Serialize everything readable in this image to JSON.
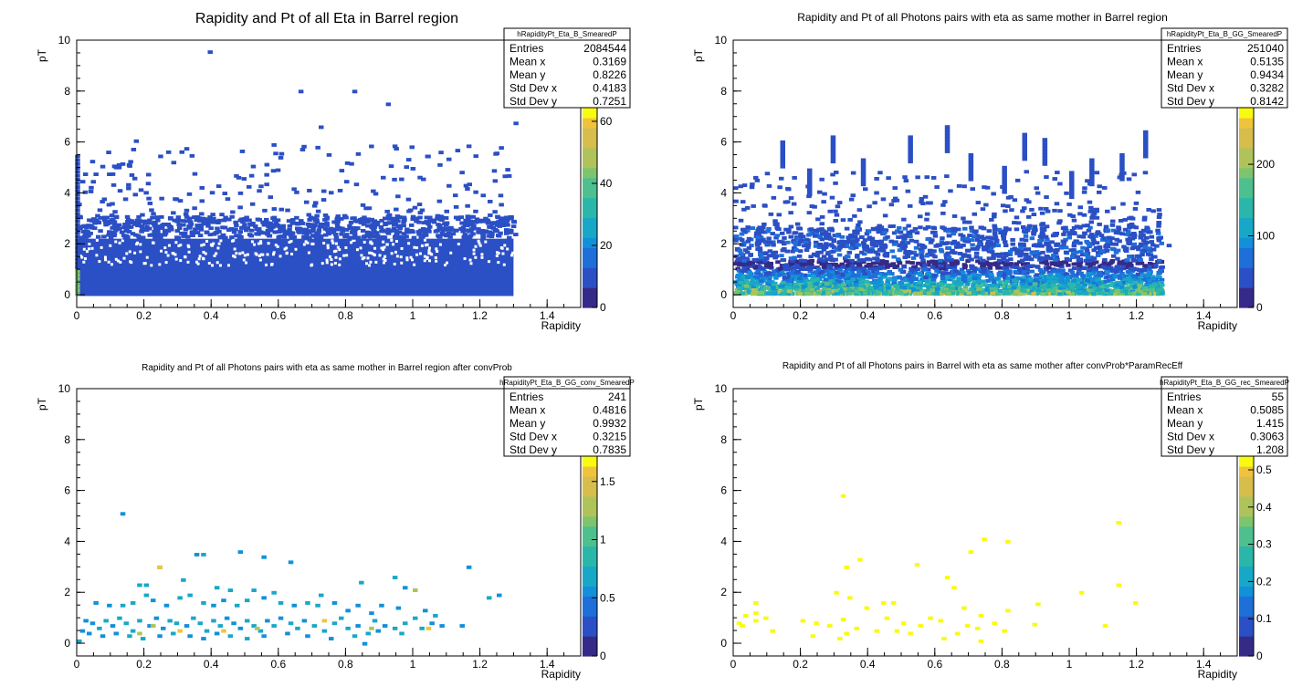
{
  "colors": {
    "palette": [
      "#352a87",
      "#2b4fc4",
      "#1e6fd9",
      "#1290d9",
      "#18a8c7",
      "#2ab7a9",
      "#4dc08e",
      "#7ec46d",
      "#b0c35a",
      "#d6bd4c",
      "#f0c43a",
      "#f9fb0e"
    ]
  },
  "chart_data": [
    {
      "type": "heatmap",
      "title": "Rapidity and Pt of all Eta in Barrel region",
      "xlabel": "Rapidity",
      "ylabel": "pT",
      "xlim": [
        0,
        1.5
      ],
      "ylim": [
        -0.5,
        10
      ],
      "x_ticks": [
        "0",
        "0.2",
        "0.4",
        "0.6",
        "0.8",
        "1",
        "1.2",
        "1.4"
      ],
      "y_ticks": [
        "0",
        "2",
        "4",
        "6",
        "8",
        "10"
      ],
      "z_ticks": [
        "0",
        "20",
        "40",
        "60",
        "80"
      ],
      "zmax": 90,
      "stats": {
        "name": "hRapidityPt_Eta_B_SmearedP",
        "rows": [
          {
            "label": "Entries",
            "value": "2084544"
          },
          {
            "label": "Mean x",
            "value": "0.3169"
          },
          {
            "label": "Mean y",
            "value": "0.8226"
          },
          {
            "label": "Std Dev x",
            "value": "0.4183"
          },
          {
            "label": "Std Dev y",
            "value": "0.7251"
          }
        ]
      },
      "x_range_filled": [
        0,
        1.3
      ],
      "dense_band_pt": 2.2,
      "sparse_band_pt": 3.0,
      "isolated_points": [
        [
          0.39,
          9.5
        ],
        [
          0.66,
          7.95
        ],
        [
          0.82,
          7.95
        ],
        [
          0.92,
          7.45
        ],
        [
          0.72,
          6.55
        ],
        [
          1.3,
          6.7
        ],
        [
          0.17,
          6.0
        ],
        [
          0.32,
          5.7
        ],
        [
          0.58,
          5.85
        ],
        [
          0.94,
          5.8
        ],
        [
          1.16,
          5.8
        ],
        [
          1.24,
          5.5
        ],
        [
          0.04,
          5.2
        ],
        [
          0.05,
          4.7
        ],
        [
          0.09,
          4.7
        ],
        [
          0.6,
          5.35
        ],
        [
          0.07,
          5.0
        ],
        [
          0.13,
          5.1
        ]
      ]
    },
    {
      "type": "heatmap",
      "title": "Rapidity and Pt of all Photons pairs with eta as same mother in Barrel region",
      "xlabel": "Rapidity",
      "ylabel": "pT",
      "xlim": [
        0,
        1.5
      ],
      "ylim": [
        -0.5,
        10
      ],
      "x_ticks": [
        "0",
        "0.2",
        "0.4",
        "0.6",
        "0.8",
        "1",
        "1.2",
        "1.4"
      ],
      "y_ticks": [
        "0",
        "2",
        "4",
        "6",
        "8",
        "10"
      ],
      "z_ticks": [
        "0",
        "100",
        "200",
        "300"
      ],
      "zmax": 390,
      "stats": {
        "name": "hRapidityPt_Eta_B_GG_SmearedP",
        "rows": [
          {
            "label": "Entries",
            "value": "251040"
          },
          {
            "label": "Mean x",
            "value": "0.5135"
          },
          {
            "label": "Mean y",
            "value": "0.9434"
          },
          {
            "label": "Std Dev x",
            "value": "0.3282"
          },
          {
            "label": "Std Dev y",
            "value": "0.8142"
          }
        ]
      },
      "x_range_filled": [
        0,
        1.27
      ],
      "dense_band_pt": 1.3,
      "sparse_band_pt": 2.6,
      "spikes": [
        [
          0.63,
          6.6
        ],
        [
          0.52,
          6.2
        ],
        [
          0.86,
          6.3
        ],
        [
          0.92,
          6.1
        ],
        [
          1.22,
          6.4
        ],
        [
          0.29,
          6.2
        ],
        [
          0.14,
          6.0
        ],
        [
          0.38,
          5.3
        ],
        [
          0.7,
          5.5
        ],
        [
          1.15,
          5.5
        ],
        [
          0.22,
          4.9
        ],
        [
          1.06,
          5.3
        ],
        [
          0.8,
          5.0
        ],
        [
          1.0,
          4.8
        ]
      ]
    },
    {
      "type": "heatmap",
      "title": "Rapidity and Pt of all Photons pairs with eta as same mother in Barrel region after convProb",
      "xlabel": "Rapidity",
      "ylabel": "pT",
      "xlim": [
        0,
        1.5
      ],
      "ylim": [
        -0.5,
        10
      ],
      "x_ticks": [
        "0",
        "0.2",
        "0.4",
        "0.6",
        "0.8",
        "1",
        "1.2",
        "1.4"
      ],
      "y_ticks": [
        "0",
        "2",
        "4",
        "6",
        "8",
        "10"
      ],
      "z_ticks": [
        "0",
        "0.5",
        "1",
        "1.5",
        "2"
      ],
      "zmax": 2.4,
      "stats": {
        "name": "hRapidityPt_Eta_B_GG_conv_SmearedP",
        "rows": [
          {
            "label": "Entries",
            "value": "241"
          },
          {
            "label": "Mean x",
            "value": "0.4816"
          },
          {
            "label": "Mean y",
            "value": "0.9932"
          },
          {
            "label": "Std Dev x",
            "value": "0.3215"
          },
          {
            "label": "Std Dev y",
            "value": "0.7835"
          }
        ]
      },
      "points": [
        [
          0.13,
          5.05
        ],
        [
          0.24,
          2.95
        ],
        [
          0.35,
          3.45
        ],
        [
          0.37,
          3.45
        ],
        [
          0.48,
          3.55
        ],
        [
          0.55,
          3.35
        ],
        [
          0.63,
          3.15
        ],
        [
          1.16,
          2.95
        ],
        [
          0.18,
          2.25
        ],
        [
          0.2,
          2.25
        ],
        [
          0.31,
          2.45
        ],
        [
          0.41,
          2.15
        ],
        [
          0.45,
          2.05
        ],
        [
          0.52,
          2.05
        ],
        [
          0.58,
          1.95
        ],
        [
          0.72,
          1.85
        ],
        [
          0.84,
          2.35
        ],
        [
          0.94,
          2.55
        ],
        [
          0.97,
          2.15
        ],
        [
          1.0,
          2.05
        ],
        [
          1.22,
          1.75
        ],
        [
          1.25,
          1.85
        ],
        [
          0.05,
          1.55
        ],
        [
          0.09,
          1.45
        ],
        [
          0.13,
          1.45
        ],
        [
          0.16,
          1.55
        ],
        [
          0.2,
          1.85
        ],
        [
          0.22,
          1.65
        ],
        [
          0.26,
          1.45
        ],
        [
          0.3,
          1.75
        ],
        [
          0.33,
          1.85
        ],
        [
          0.37,
          1.55
        ],
        [
          0.4,
          1.45
        ],
        [
          0.43,
          1.65
        ],
        [
          0.47,
          1.45
        ],
        [
          0.5,
          1.65
        ],
        [
          0.55,
          1.75
        ],
        [
          0.6,
          1.55
        ],
        [
          0.64,
          1.45
        ],
        [
          0.68,
          1.55
        ],
        [
          0.71,
          1.45
        ],
        [
          0.76,
          1.55
        ],
        [
          0.8,
          1.25
        ],
        [
          0.83,
          1.45
        ],
        [
          0.87,
          1.15
        ],
        [
          0.9,
          1.45
        ],
        [
          0.95,
          1.35
        ],
        [
          1.03,
          1.25
        ],
        [
          1.06,
          1.05
        ],
        [
          0.02,
          0.85
        ],
        [
          0.04,
          0.75
        ],
        [
          0.06,
          0.55
        ],
        [
          0.08,
          0.85
        ],
        [
          0.1,
          0.65
        ],
        [
          0.12,
          0.95
        ],
        [
          0.14,
          0.75
        ],
        [
          0.16,
          0.45
        ],
        [
          0.18,
          0.85
        ],
        [
          0.21,
          0.65
        ],
        [
          0.23,
          0.95
        ],
        [
          0.25,
          0.55
        ],
        [
          0.27,
          0.85
        ],
        [
          0.29,
          0.75
        ],
        [
          0.32,
          0.65
        ],
        [
          0.34,
          0.95
        ],
        [
          0.36,
          0.75
        ],
        [
          0.38,
          0.45
        ],
        [
          0.4,
          0.85
        ],
        [
          0.42,
          0.65
        ],
        [
          0.44,
          0.95
        ],
        [
          0.46,
          0.75
        ],
        [
          0.48,
          0.55
        ],
        [
          0.5,
          0.85
        ],
        [
          0.52,
          0.65
        ],
        [
          0.54,
          0.45
        ],
        [
          0.56,
          0.85
        ],
        [
          0.58,
          0.65
        ],
        [
          0.6,
          0.95
        ],
        [
          0.63,
          0.75
        ],
        [
          0.65,
          0.55
        ],
        [
          0.67,
          0.85
        ],
        [
          0.7,
          0.65
        ],
        [
          0.73,
          0.45
        ],
        [
          0.76,
          0.75
        ],
        [
          0.78,
          0.95
        ],
        [
          0.8,
          0.55
        ],
        [
          0.83,
          0.65
        ],
        [
          0.86,
          0.35
        ],
        [
          0.88,
          0.85
        ],
        [
          0.91,
          0.65
        ],
        [
          0.94,
          0.55
        ],
        [
          0.97,
          0.75
        ],
        [
          1.0,
          0.95
        ],
        [
          1.02,
          0.55
        ],
        [
          1.05,
          0.75
        ],
        [
          1.08,
          0.65
        ],
        [
          1.14,
          0.65
        ],
        [
          0.01,
          0.45
        ],
        [
          0.03,
          0.35
        ],
        [
          0.07,
          0.25
        ],
        [
          0.11,
          0.35
        ],
        [
          0.15,
          0.25
        ],
        [
          0.19,
          0.15
        ],
        [
          0.24,
          0.25
        ],
        [
          0.28,
          0.35
        ],
        [
          0.33,
          0.25
        ],
        [
          0.37,
          0.15
        ],
        [
          0.41,
          0.35
        ],
        [
          0.45,
          0.25
        ],
        [
          0.5,
          0.15
        ],
        [
          0.55,
          0.25
        ],
        [
          0.62,
          0.35
        ],
        [
          0.68,
          0.25
        ],
        [
          0.75,
          0.15
        ],
        [
          0.82,
          0.25
        ],
        [
          0.89,
          0.45
        ],
        [
          0.96,
          0.35
        ],
        [
          0.85,
          -0.05
        ],
        [
          0.0,
          0.05
        ]
      ],
      "hot_points": [
        [
          0.24,
          2.95
        ],
        [
          0.22,
          0.65
        ],
        [
          0.43,
          0.45
        ],
        [
          0.73,
          0.85
        ],
        [
          0.3,
          0.45
        ],
        [
          1.0,
          2.05
        ],
        [
          0.53,
          0.55
        ],
        [
          0.18,
          0.35
        ],
        [
          0.87,
          0.55
        ],
        [
          1.04,
          0.55
        ]
      ]
    },
    {
      "type": "heatmap",
      "title": "Rapidity and Pt of all Photons pairs in Barrel with eta as same mother after convProb*ParamRecEff",
      "xlabel": "Rapidity",
      "ylabel": "pT",
      "xlim": [
        0,
        1.5
      ],
      "ylim": [
        -0.5,
        10
      ],
      "x_ticks": [
        "0",
        "0.2",
        "0.4",
        "0.6",
        "0.8",
        "1",
        "1.2",
        "1.4"
      ],
      "y_ticks": [
        "0",
        "2",
        "4",
        "6",
        "8",
        "10"
      ],
      "z_ticks": [
        "0",
        "0.1",
        "0.2",
        "0.3",
        "0.4",
        "0.5",
        "0.6",
        "0.7"
      ],
      "zmax": 0.75,
      "stats": {
        "name": "hRapidityPt_Eta_B_GG_rec_SmearedP",
        "rows": [
          {
            "label": "Entries",
            "value": "55"
          },
          {
            "label": "Mean x",
            "value": "0.5085"
          },
          {
            "label": "Mean y",
            "value": "1.415"
          },
          {
            "label": "Std Dev x",
            "value": "0.3063"
          },
          {
            "label": "Std Dev y",
            "value": "1.208"
          }
        ]
      },
      "points": [
        [
          0.32,
          5.75
        ],
        [
          1.14,
          4.7
        ],
        [
          0.74,
          4.05
        ],
        [
          0.81,
          3.95
        ],
        [
          0.7,
          3.55
        ],
        [
          0.37,
          3.25
        ],
        [
          0.33,
          2.95
        ],
        [
          0.54,
          3.05
        ],
        [
          0.63,
          2.55
        ],
        [
          1.14,
          2.25
        ],
        [
          0.65,
          2.15
        ],
        [
          0.3,
          1.95
        ],
        [
          1.03,
          1.95
        ],
        [
          0.34,
          1.75
        ],
        [
          0.44,
          1.55
        ],
        [
          0.47,
          1.55
        ],
        [
          0.06,
          1.55
        ],
        [
          0.9,
          1.5
        ],
        [
          1.19,
          1.55
        ],
        [
          0.39,
          1.35
        ],
        [
          0.68,
          1.35
        ],
        [
          0.81,
          1.25
        ],
        [
          0.06,
          1.15
        ],
        [
          0.03,
          1.05
        ],
        [
          0.73,
          1.05
        ],
        [
          0.58,
          0.95
        ],
        [
          0.09,
          0.95
        ],
        [
          0.06,
          0.85
        ],
        [
          0.2,
          0.85
        ],
        [
          0.45,
          0.95
        ],
        [
          0.32,
          0.9
        ],
        [
          0.61,
          0.85
        ],
        [
          0.24,
          0.75
        ],
        [
          0.01,
          0.75
        ],
        [
          0.5,
          0.75
        ],
        [
          0.77,
          0.75
        ],
        [
          0.02,
          0.65
        ],
        [
          0.28,
          0.65
        ],
        [
          0.55,
          0.65
        ],
        [
          0.69,
          0.65
        ],
        [
          0.89,
          0.7
        ],
        [
          1.1,
          0.65
        ],
        [
          0.36,
          0.55
        ],
        [
          0.72,
          0.55
        ],
        [
          0.11,
          0.45
        ],
        [
          0.42,
          0.45
        ],
        [
          0.48,
          0.45
        ],
        [
          0.8,
          0.45
        ],
        [
          0.33,
          0.35
        ],
        [
          0.52,
          0.35
        ],
        [
          0.66,
          0.35
        ],
        [
          0.23,
          0.25
        ],
        [
          0.31,
          0.15
        ],
        [
          0.62,
          0.15
        ],
        [
          0.73,
          0.05
        ]
      ]
    }
  ]
}
